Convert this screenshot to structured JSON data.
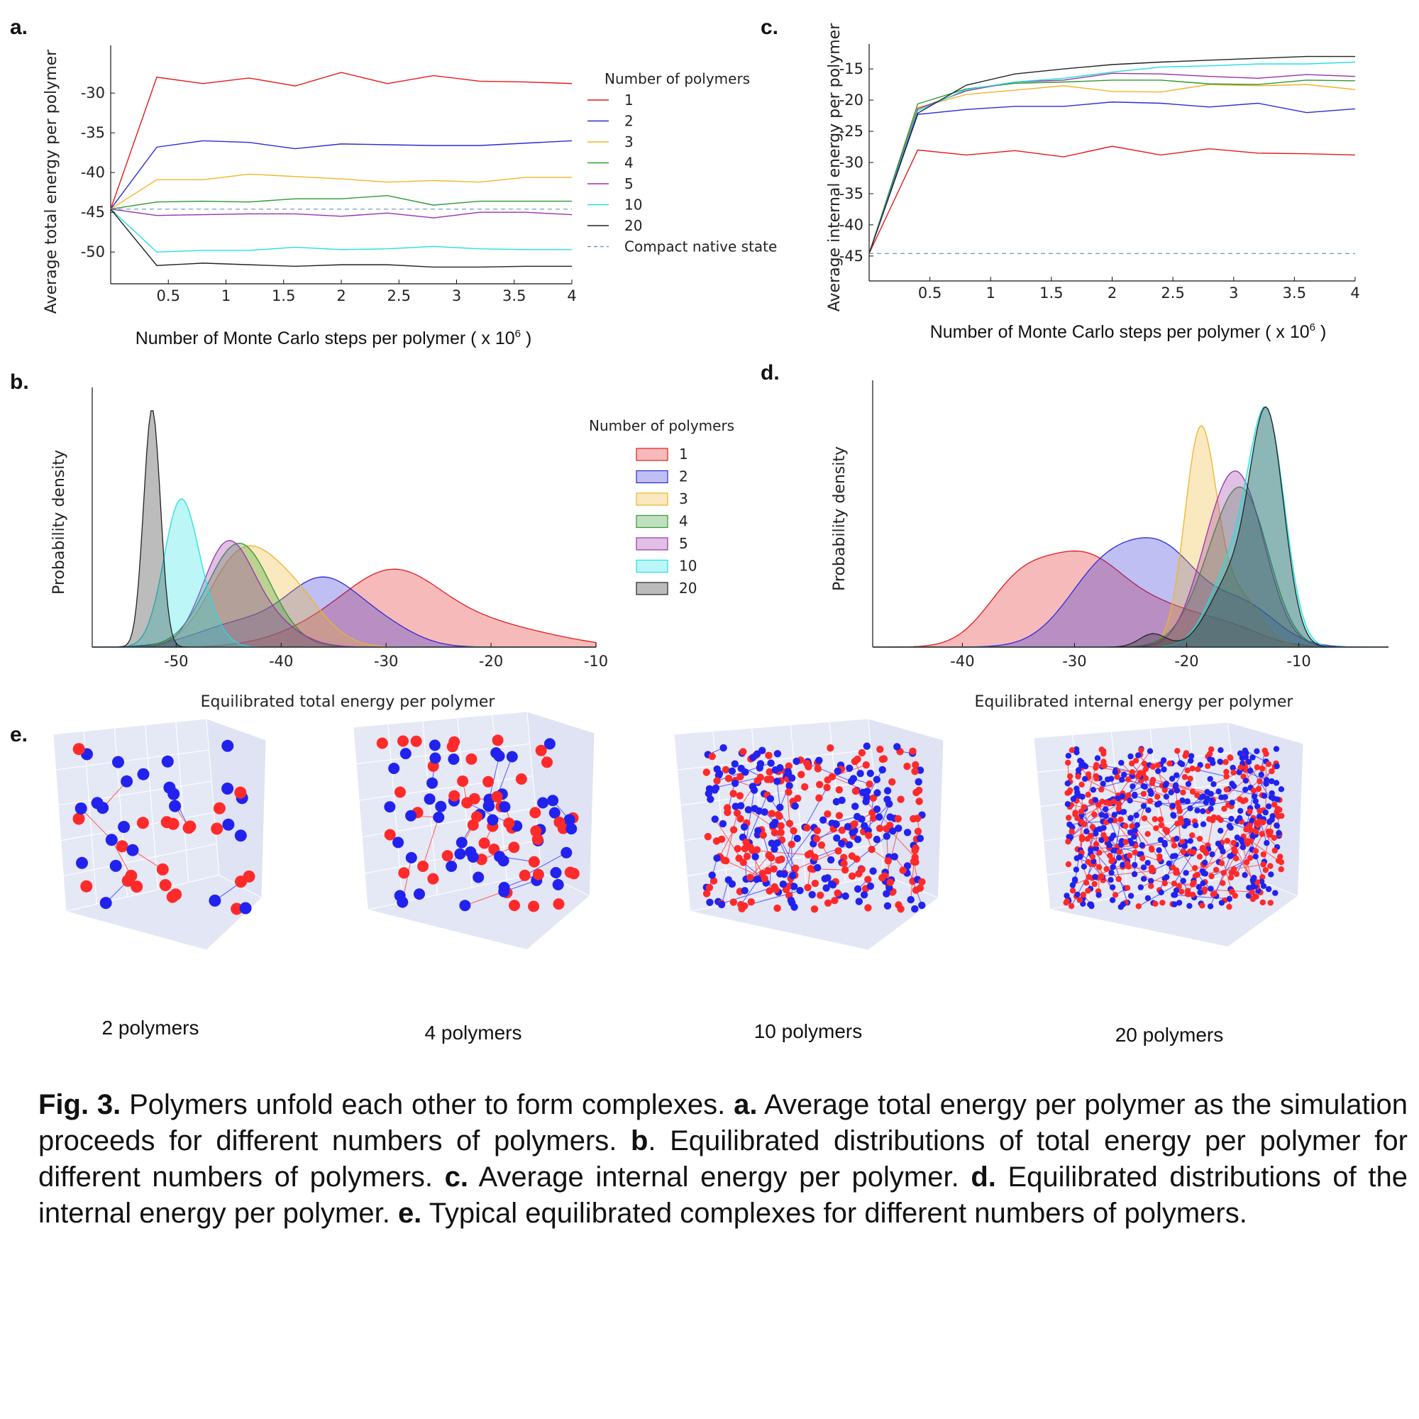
{
  "panels": {
    "a": {
      "letter": "a.",
      "ylabel": "Average total energy per polymer",
      "xlabel": "Number of Monte Carlo steps per polymer ( x 10",
      "xlabel_sup": "6",
      "xlabel_end": " )"
    },
    "b": {
      "letter": "b.",
      "ylabel": "Probability density",
      "xlabel": "Equilibrated total energy per polymer"
    },
    "c": {
      "letter": "c.",
      "ylabel": "Average internal energy per polymer",
      "xlabel": "Number of Monte Carlo steps per polymer ( x 10",
      "xlabel_sup": "6",
      "xlabel_end": " )"
    },
    "d": {
      "letter": "d.",
      "ylabel": "Probability density",
      "xlabel": "Equilibrated internal energy per polymer"
    },
    "e": {
      "letter": "e.",
      "labels": [
        "2 polymers",
        "4 polymers",
        "10 polymers",
        "20 polymers"
      ]
    }
  },
  "legend": {
    "title": "Number of polymers",
    "items": [
      "1",
      "2",
      "3",
      "4",
      "5",
      "10",
      "20"
    ],
    "native": "Compact native state",
    "colors": [
      "#e41a1c",
      "#2b2bd6",
      "#f0b429",
      "#2e9a2e",
      "#9b30a8",
      "#22e0e0",
      "#222222"
    ],
    "native_color": "#7a9bc4"
  },
  "chart_data": [
    {
      "id": "a",
      "type": "line",
      "x": [
        0,
        0.4,
        0.8,
        1.2,
        1.6,
        2.0,
        2.4,
        2.8,
        3.2,
        3.6,
        4.0
      ],
      "xticks": [
        "0.5",
        "1",
        "1.5",
        "2",
        "2.5",
        "3",
        "3.5",
        "4"
      ],
      "xtick_values": [
        0.5,
        1,
        1.5,
        2,
        2.5,
        3,
        3.5,
        4
      ],
      "yticks": [
        "-30",
        "-35",
        "-40",
        "-45",
        "-50"
      ],
      "ytick_values": [
        -30,
        -35,
        -40,
        -45,
        -50
      ],
      "xlim": [
        0,
        4
      ],
      "ylim": [
        -54,
        -24
      ],
      "native": -44.6,
      "series": [
        {
          "name": "1",
          "values": [
            -44.6,
            -28.0,
            -28.8,
            -28.1,
            -29.1,
            -27.4,
            -28.8,
            -27.8,
            -28.5,
            -28.6,
            -28.8
          ]
        },
        {
          "name": "2",
          "values": [
            -44.6,
            -36.8,
            -36.0,
            -36.2,
            -37.0,
            -36.4,
            -36.5,
            -36.6,
            -36.6,
            -36.3,
            -36.0
          ]
        },
        {
          "name": "3",
          "values": [
            -44.6,
            -40.9,
            -40.9,
            -40.2,
            -40.5,
            -40.8,
            -41.2,
            -41.0,
            -41.2,
            -40.6,
            -40.6
          ]
        },
        {
          "name": "4",
          "values": [
            -44.6,
            -43.7,
            -43.6,
            -43.7,
            -43.3,
            -43.3,
            -42.9,
            -44.1,
            -43.6,
            -43.6,
            -43.6
          ]
        },
        {
          "name": "5",
          "values": [
            -44.6,
            -45.4,
            -45.3,
            -45.2,
            -45.2,
            -45.5,
            -45.1,
            -45.7,
            -45.0,
            -45.0,
            -45.3
          ]
        },
        {
          "name": "10",
          "values": [
            -44.6,
            -50.0,
            -49.8,
            -49.8,
            -49.4,
            -49.7,
            -49.6,
            -49.3,
            -49.6,
            -49.7,
            -49.7
          ]
        },
        {
          "name": "20",
          "values": [
            -44.6,
            -51.7,
            -51.4,
            -51.6,
            -51.8,
            -51.6,
            -51.6,
            -51.9,
            -51.9,
            -51.8,
            -51.8
          ]
        }
      ]
    },
    {
      "id": "b",
      "type": "area",
      "xticks": [
        "-50",
        "-40",
        "-30",
        "-20",
        "-10"
      ],
      "xtick_values": [
        -50,
        -40,
        -30,
        -20,
        -10
      ],
      "xlim": [
        -58,
        -10
      ],
      "series": [
        {
          "name": "1",
          "peaks": [
            [
              -36,
              4.5,
              0.25
            ],
            [
              -29,
              4.5,
              1.0
            ],
            [
              -20,
              4.5,
              0.28
            ],
            [
              -13,
              3.5,
              0.06
            ]
          ]
        },
        {
          "name": "2",
          "peaks": [
            [
              -44,
              4,
              0.35
            ],
            [
              -36,
              3.5,
              1.0
            ],
            [
              -30,
              3,
              0.25
            ]
          ]
        },
        {
          "name": "3",
          "peaks": [
            [
              -44,
              3,
              1.0
            ],
            [
              -39,
              3,
              0.6
            ]
          ]
        },
        {
          "name": "4",
          "peaks": [
            [
              -44,
              3,
              1.0
            ]
          ]
        },
        {
          "name": "5",
          "peaks": [
            [
              -45.3,
              2.3,
              1.0
            ],
            [
              -42,
              3,
              0.35
            ]
          ]
        },
        {
          "name": "10",
          "peaks": [
            [
              -49.6,
              1.6,
              1.0
            ],
            [
              -47,
              1.5,
              0.15
            ]
          ]
        },
        {
          "name": "20",
          "peaks": [
            [
              -52.3,
              0.8,
              1.0
            ]
          ]
        }
      ],
      "series_heights": [
        0.3,
        0.27,
        0.39,
        0.4,
        0.41,
        0.57,
        0.91
      ]
    },
    {
      "id": "c",
      "type": "line",
      "x": [
        0,
        0.4,
        0.8,
        1.2,
        1.6,
        2.0,
        2.4,
        2.8,
        3.2,
        3.6,
        4.0
      ],
      "xticks": [
        "0.5",
        "1",
        "1.5",
        "2",
        "2.5",
        "3",
        "3.5",
        "4"
      ],
      "xtick_values": [
        0.5,
        1,
        1.5,
        2,
        2.5,
        3,
        3.5,
        4
      ],
      "yticks": [
        "-15",
        "-20",
        "-25",
        "-30",
        "-35",
        "-40",
        "-45"
      ],
      "ytick_values": [
        -15,
        -20,
        -25,
        -30,
        -35,
        -40,
        -45
      ],
      "xlim": [
        0,
        4
      ],
      "ylim": [
        -49,
        -11
      ],
      "native": -44.6,
      "series": [
        {
          "name": "1",
          "values": [
            -44.6,
            -28.0,
            -28.8,
            -28.1,
            -29.1,
            -27.4,
            -28.8,
            -27.8,
            -28.5,
            -28.6,
            -28.8
          ]
        },
        {
          "name": "2",
          "values": [
            -44.6,
            -22.3,
            -21.5,
            -21.0,
            -21.0,
            -20.3,
            -20.5,
            -21.1,
            -20.5,
            -22.0,
            -21.4
          ]
        },
        {
          "name": "3",
          "values": [
            -44.6,
            -21.2,
            -19.1,
            -18.4,
            -17.7,
            -18.6,
            -18.7,
            -17.5,
            -17.7,
            -17.5,
            -18.3
          ]
        },
        {
          "name": "4",
          "values": [
            -44.6,
            -20.6,
            -18.2,
            -17.3,
            -17.1,
            -16.8,
            -16.8,
            -17.4,
            -17.5,
            -16.8,
            -16.9
          ]
        },
        {
          "name": "5",
          "values": [
            -44.6,
            -21.4,
            -18.5,
            -17.1,
            -16.8,
            -15.7,
            -15.8,
            -16.2,
            -16.5,
            -15.9,
            -16.2
          ]
        },
        {
          "name": "10",
          "values": [
            -44.6,
            -21.7,
            -18.3,
            -17.1,
            -16.5,
            -15.5,
            -14.7,
            -14.5,
            -14.2,
            -14.2,
            -13.9
          ]
        },
        {
          "name": "20",
          "values": [
            -44.6,
            -22.1,
            -17.6,
            -15.8,
            -15.0,
            -14.3,
            -13.9,
            -13.6,
            -13.3,
            -13.0,
            -13.0
          ]
        }
      ]
    },
    {
      "id": "d",
      "type": "area",
      "xticks": [
        "-40",
        "-30",
        "-20",
        "-10"
      ],
      "xtick_values": [
        -40,
        -30,
        -20,
        -10
      ],
      "xlim": [
        -48,
        -2
      ],
      "series": [
        {
          "name": "1",
          "peaks": [
            [
              -35,
              3,
              0.7
            ],
            [
              -29,
              3.5,
              1.0
            ],
            [
              -22,
              3.5,
              0.4
            ],
            [
              -16,
              3,
              0.2
            ]
          ]
        },
        {
          "name": "2",
          "peaks": [
            [
              -27,
              3.5,
              1.0
            ],
            [
              -21.5,
              3,
              0.9
            ],
            [
              -15,
              3,
              0.5
            ]
          ]
        },
        {
          "name": "3",
          "peaks": [
            [
              -18.8,
              1.4,
              1.0
            ],
            [
              -15.5,
              2,
              0.25
            ]
          ]
        },
        {
          "name": "4",
          "peaks": [
            [
              -17,
              2.5,
              0.6
            ],
            [
              -14.5,
              2.2,
              0.85
            ]
          ]
        },
        {
          "name": "5",
          "peaks": [
            [
              -15.2,
              2.3,
              1.0
            ],
            [
              -18,
              2,
              0.3
            ]
          ]
        },
        {
          "name": "10",
          "peaks": [
            [
              -12.8,
              1.6,
              1.0
            ],
            [
              -16,
              2,
              0.35
            ]
          ]
        },
        {
          "name": "20",
          "peaks": [
            [
              -12.8,
              1.5,
              1.0
            ],
            [
              -16,
              2,
              0.3
            ],
            [
              -23,
              1.2,
              0.06
            ]
          ]
        }
      ],
      "series_heights": [
        0.36,
        0.41,
        0.83,
        0.6,
        0.66,
        0.9,
        0.9
      ]
    }
  ],
  "caption": {
    "fig": "Fig. 3.",
    "t1": " Polymers unfold each other to form complexes. ",
    "a": "a.",
    "t2": " Average total energy per polymer as the simulation proceeds for different numbers of polymers. ",
    "b": "b",
    "t3": ". Equilibrated distributions of total energy per polymer for different numbers of polymers. ",
    "c": "c.",
    "t4": " Average internal energy per polymer. ",
    "d": "d.",
    "t5": " Equilibrated distributions of the internal energy per polymer. ",
    "e": "e.",
    "t6": " Typical equilibrated complexes for different numbers of polymers."
  }
}
